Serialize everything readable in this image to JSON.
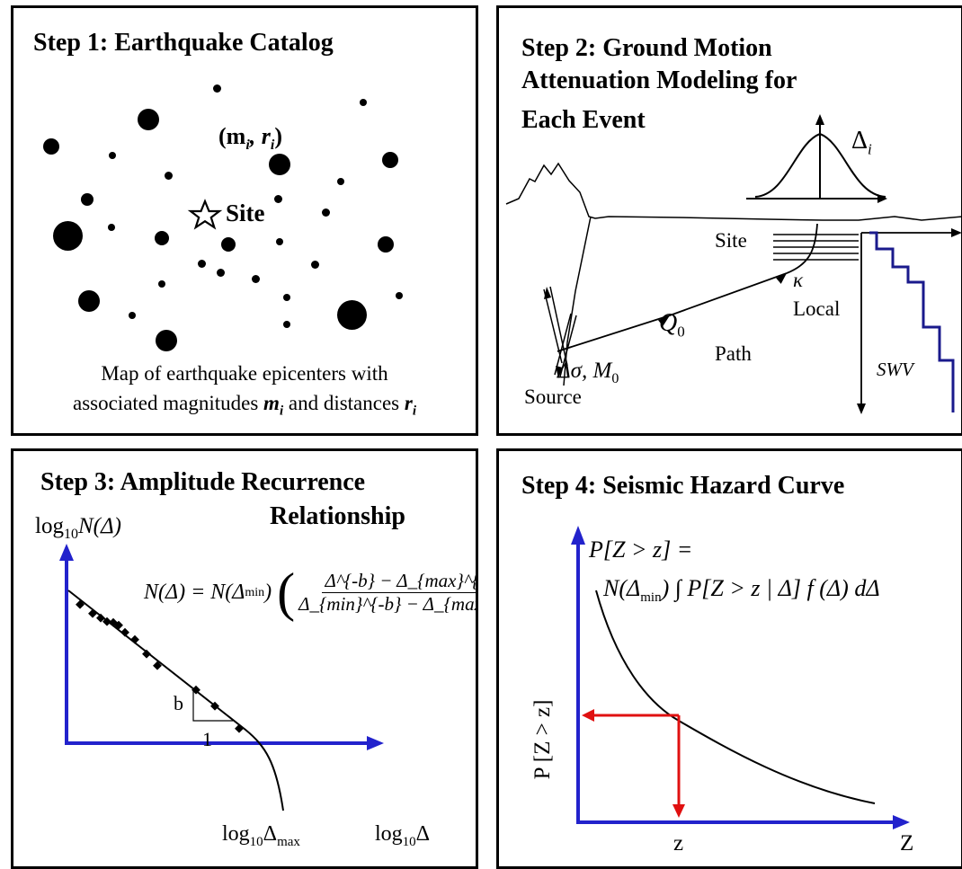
{
  "panel1": {
    "title": "Step 1: Earthquake Catalog",
    "event_label": "(m",
    "event_label_sub_i": "i",
    "event_label_mid": ", r",
    "event_label_sub_i2": "i",
    "event_label_end": ")",
    "site_label": "Site",
    "caption_line1": "Map of earthquake epicenters with",
    "caption_line2_a": "associated magnitudes ",
    "caption_m": "m",
    "caption_sub": "i",
    "caption_line2_b": " and distances ",
    "caption_r": "r",
    "caption_sub2": "i"
  },
  "panel2": {
    "title_line1": "Step 2: Ground Motion",
    "title_line2": "Attenuation Modeling for",
    "title_line3": "Each Event",
    "delta_label": "Δ",
    "delta_sub": "i",
    "site_label": "Site",
    "kappa_label": "κ",
    "local_label": "Local",
    "q_label": "Q",
    "q_sub": "0",
    "path_label": "Path",
    "stress_label": "Δσ, M",
    "stress_sub": "0",
    "source_label": "Source",
    "swv_label": "SWV",
    "colors": {
      "profile": "#1a1a8c"
    }
  },
  "panel3": {
    "title_line1": "Step 3: Amplitude Recurrence",
    "title_line2": "Relationship",
    "y_axis_label": "log",
    "y_axis_sub": "10",
    "y_axis_rest": "N(Δ)",
    "eq_lhs": "N(Δ) = N(Δ",
    "eq_lhs_sub": "min",
    "eq_num": "Δ^{-b} − Δ_{max}^{-b}",
    "eq_den": "Δ_{min}^{-b} − Δ_{max}^{-b}",
    "b_label": "b",
    "one_label": "1",
    "x_max_label": "log",
    "x_max_sub": "10",
    "x_max_rest": "Δ",
    "x_max_subsub": "max",
    "x_axis_label": "log",
    "x_axis_sub": "10",
    "x_axis_rest": "Δ",
    "colors": {
      "axis": "#2222cc"
    }
  },
  "panel4": {
    "title": "Step 4: Seismic Hazard Curve",
    "eq_line1": "P[Z > z] =",
    "eq_line2_a": "N(Δ",
    "eq_line2_sub": "min",
    "eq_line2_b": ") ∫ P[Z > z | Δ] f (Δ) dΔ",
    "y_axis_label": "P [Z > z]",
    "x_tick_label": "z",
    "x_axis_label": "Z",
    "colors": {
      "axis": "#2222cc",
      "arrow": "#e01010"
    }
  }
}
